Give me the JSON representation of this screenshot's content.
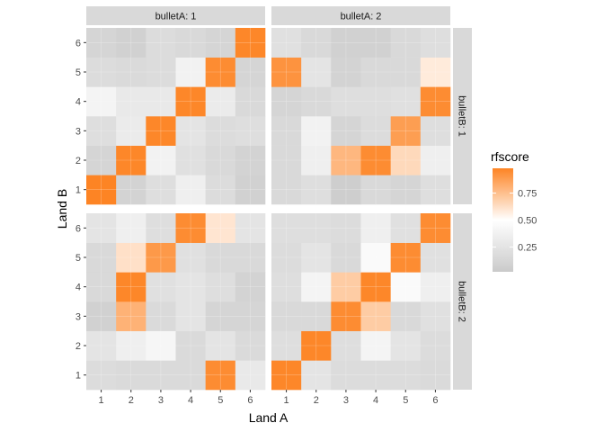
{
  "chart_data": {
    "type": "heatmap",
    "xlabel": "Land A",
    "ylabel": "Land B",
    "x_ticks": [
      "1",
      "2",
      "3",
      "4",
      "5",
      "6"
    ],
    "y_ticks": [
      "1",
      "2",
      "3",
      "4",
      "5",
      "6"
    ],
    "facet_cols": [
      "bulletA: 1",
      "bulletA: 2"
    ],
    "facet_rows": [
      "bulletB: 1",
      "bulletB: 2"
    ],
    "legend": {
      "title": "rfscore",
      "breaks": [
        0.25,
        0.5,
        0.75
      ],
      "break_labels": [
        "0.25",
        "0.50",
        "0.75"
      ],
      "range": [
        0.02,
        0.98
      ],
      "placement": "right"
    },
    "colors": {
      "low": "#c8c8c8",
      "mid": "#ffffff",
      "high": "#fd7f1b",
      "panel_background": "#ebebeb",
      "strip_background": "#d9d9d9"
    },
    "panels": [
      {
        "col": "bulletA: 1",
        "row": "bulletB: 1",
        "values": [
          [
            0.98,
            0.1,
            0.2,
            0.35,
            0.18,
            0.08
          ],
          [
            0.12,
            0.97,
            0.38,
            0.22,
            0.15,
            0.1
          ],
          [
            0.2,
            0.32,
            0.97,
            0.25,
            0.18,
            0.2
          ],
          [
            0.4,
            0.3,
            0.3,
            0.97,
            0.32,
            0.15
          ],
          [
            0.18,
            0.16,
            0.18,
            0.38,
            0.95,
            0.12
          ],
          [
            0.12,
            0.08,
            0.18,
            0.15,
            0.12,
            0.97
          ]
        ]
      },
      {
        "col": "bulletA: 2",
        "row": "bulletB: 1",
        "values": [
          [
            0.15,
            0.2,
            0.05,
            0.15,
            0.12,
            0.2
          ],
          [
            0.15,
            0.35,
            0.78,
            0.95,
            0.65,
            0.35
          ],
          [
            0.15,
            0.38,
            0.12,
            0.18,
            0.88,
            0.2
          ],
          [
            0.12,
            0.15,
            0.2,
            0.2,
            0.22,
            0.95
          ],
          [
            0.92,
            0.25,
            0.1,
            0.15,
            0.15,
            0.58
          ],
          [
            0.22,
            0.15,
            0.08,
            0.08,
            0.15,
            0.2
          ]
        ]
      },
      {
        "col": "bulletA: 1",
        "row": "bulletB: 2",
        "values": [
          [
            0.18,
            0.16,
            0.16,
            0.16,
            0.95,
            0.3
          ],
          [
            0.25,
            0.35,
            0.42,
            0.16,
            0.25,
            0.16
          ],
          [
            0.08,
            0.8,
            0.16,
            0.25,
            0.12,
            0.12
          ],
          [
            0.15,
            0.97,
            0.22,
            0.25,
            0.2,
            0.1
          ],
          [
            0.15,
            0.62,
            0.9,
            0.22,
            0.15,
            0.15
          ],
          [
            0.25,
            0.35,
            0.2,
            0.95,
            0.6,
            0.25
          ]
        ]
      },
      {
        "col": "bulletA: 2",
        "row": "bulletB: 2",
        "values": [
          [
            0.97,
            0.25,
            0.18,
            0.18,
            0.18,
            0.16
          ],
          [
            0.2,
            0.97,
            0.2,
            0.4,
            0.25,
            0.18
          ],
          [
            0.15,
            0.15,
            0.95,
            0.7,
            0.15,
            0.22
          ],
          [
            0.2,
            0.4,
            0.7,
            0.97,
            0.45,
            0.35
          ],
          [
            0.18,
            0.25,
            0.15,
            0.45,
            0.95,
            0.22
          ],
          [
            0.2,
            0.2,
            0.18,
            0.35,
            0.22,
            0.95
          ]
        ]
      }
    ]
  }
}
